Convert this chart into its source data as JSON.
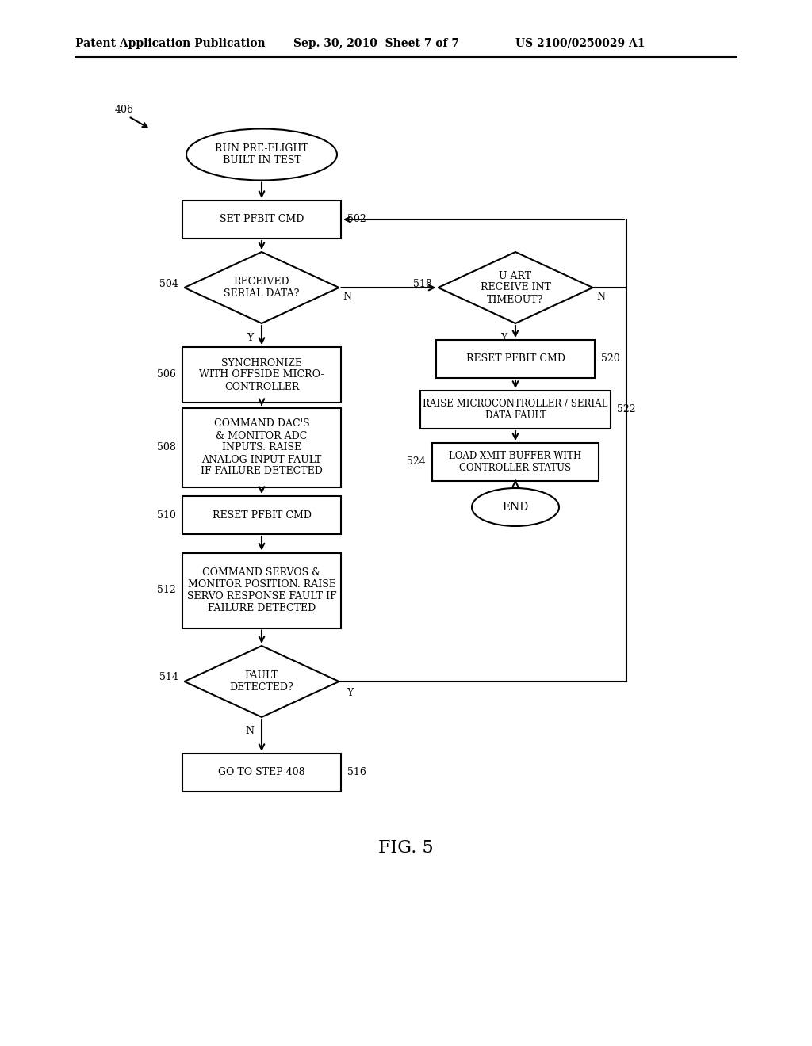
{
  "bg_color": "#ffffff",
  "header_left": "Patent Application Publication",
  "header_mid": "Sep. 30, 2010  Sheet 7 of 7",
  "header_right": "US 2100/0250029 A1",
  "fig_label": "FIG. 5"
}
